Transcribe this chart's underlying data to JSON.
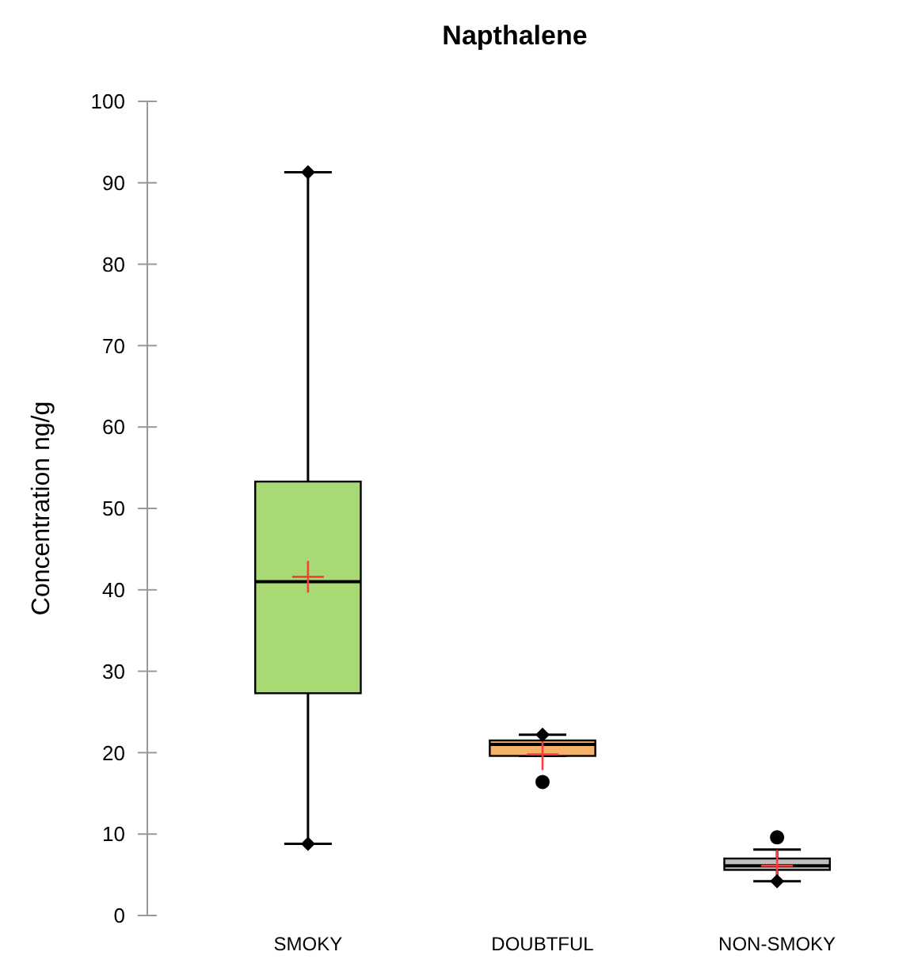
{
  "chart_data": {
    "type": "box",
    "title": "Napthalene",
    "ylabel": "Concentration ng/g",
    "categories": [
      "SMOKY",
      "DOUBTFUL",
      "NON-SMOKY"
    ],
    "boxes": [
      {
        "low": 8.8,
        "q1": 27.3,
        "median": 41,
        "q3": 53.3,
        "high": 91.3,
        "mean": 41.6
      },
      {
        "low": 19.6,
        "q1": 19.6,
        "median": 21,
        "q3": 21.5,
        "high": 22.2,
        "mean": 19.8,
        "outliers": [
          16.4
        ]
      },
      {
        "low": 4.2,
        "q1": 5.6,
        "median": 6.1,
        "q3": 7,
        "high": 8.1,
        "mean": 6.1,
        "outliers": [
          9.6
        ]
      }
    ],
    "colors": [
      "#a9d974",
      "#f4b16c",
      "#bfbfbf"
    ],
    "series": [
      {
        "type": "scatter",
        "marker": "diamond",
        "color": "#000000",
        "x": [
          "SMOKY",
          "SMOKY",
          "DOUBTFUL",
          "NON-SMOKY"
        ],
        "values": [
          91.3,
          8.8,
          22.2,
          4.2
        ]
      }
    ],
    "ylim": [
      0,
      100
    ],
    "yticks": [
      0,
      10,
      20,
      30,
      40,
      50,
      60,
      70,
      80,
      90,
      100
    ],
    "grid": false
  }
}
